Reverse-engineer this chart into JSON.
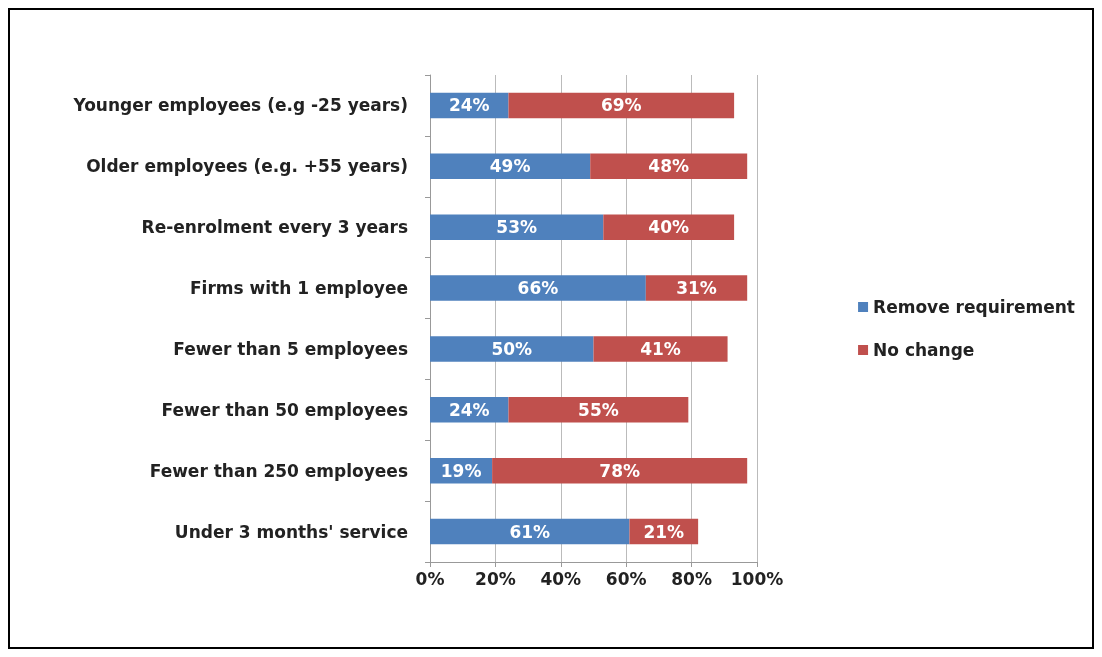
{
  "chart_data": {
    "type": "bar",
    "orientation": "horizontal",
    "stacked": true,
    "categories": [
      "Younger employees (e.g -25 years)",
      "Older employees (e.g. +55 years)",
      "Re-enrolment every 3 years",
      "Firms with 1 employee",
      "Fewer than 5 employees",
      "Fewer than 50 employees",
      "Fewer than 250 employees",
      "Under 3 months' service"
    ],
    "series": [
      {
        "name": "Remove requirement",
        "color": "#4f81bd",
        "values": [
          24,
          49,
          53,
          66,
          50,
          24,
          19,
          61
        ],
        "value_labels": [
          "24%",
          "49%",
          "53%",
          "66%",
          "50%",
          "24%",
          "19%",
          "61%"
        ]
      },
      {
        "name": "No change",
        "color": "#c0504d",
        "values": [
          69,
          48,
          40,
          31,
          41,
          55,
          78,
          21
        ],
        "value_labels": [
          "69%",
          "48%",
          "40%",
          "31%",
          "41%",
          "55%",
          "78%",
          "21%"
        ]
      }
    ],
    "xlim": [
      0,
      100
    ],
    "xticks": [
      {
        "value": 0,
        "label": "0%"
      },
      {
        "value": 20,
        "label": "20%"
      },
      {
        "value": 40,
        "label": "40%"
      },
      {
        "value": 60,
        "label": "60%"
      },
      {
        "value": 80,
        "label": "80%"
      },
      {
        "value": 100,
        "label": "100%"
      }
    ],
    "grid": "x",
    "legend": "right"
  }
}
